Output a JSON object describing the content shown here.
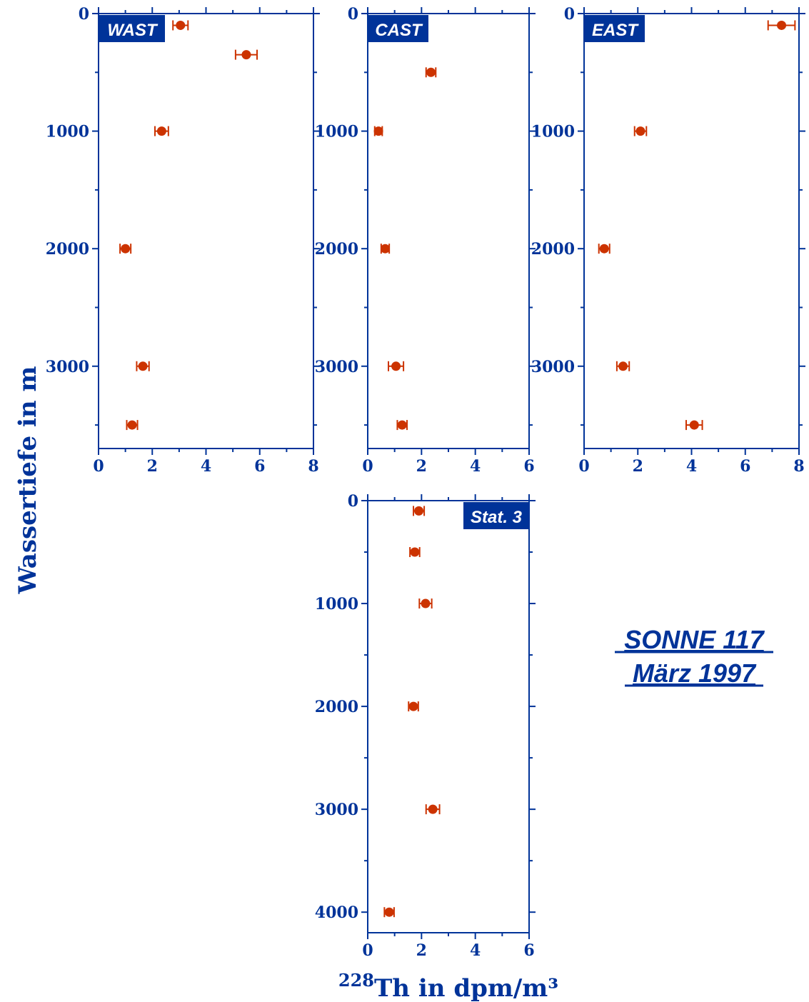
{
  "colors": {
    "axis": "#003399",
    "marker": "#cc3300",
    "tag_bg": "#003399",
    "tag_text": "#ffffff"
  },
  "annotation": {
    "line1": "SONNE 117",
    "line2": "März 1997"
  },
  "y_axis_title": "Wassertiefe in m",
  "x_axis_title": {
    "superscript": "228",
    "text": "Th in dpm/m³"
  },
  "chart_data": [
    {
      "type": "scatter",
      "title": "WAST",
      "xlim": [
        0,
        8
      ],
      "ylim": [
        3700,
        0
      ],
      "xticks": [
        0,
        2,
        4,
        6,
        8
      ],
      "yticks": [
        0,
        1000,
        2000,
        3000
      ],
      "points": [
        {
          "depth": 100,
          "value": 3.05,
          "err": 0.28
        },
        {
          "depth": 350,
          "value": 5.5,
          "err": 0.4
        },
        {
          "depth": 1000,
          "value": 2.35,
          "err": 0.25
        },
        {
          "depth": 2000,
          "value": 1.0,
          "err": 0.2
        },
        {
          "depth": 3000,
          "value": 1.65,
          "err": 0.23
        },
        {
          "depth": 3500,
          "value": 1.25,
          "err": 0.2
        }
      ]
    },
    {
      "type": "scatter",
      "title": "CAST",
      "xlim": [
        0,
        6
      ],
      "ylim": [
        3700,
        0
      ],
      "xticks": [
        0,
        2,
        4,
        6
      ],
      "yticks": [
        0,
        1000,
        2000,
        3000
      ],
      "points": [
        {
          "depth": 500,
          "value": 2.35,
          "err": 0.18
        },
        {
          "depth": 1000,
          "value": 0.4,
          "err": 0.14
        },
        {
          "depth": 2000,
          "value": 0.65,
          "err": 0.15
        },
        {
          "depth": 3000,
          "value": 1.05,
          "err": 0.28
        },
        {
          "depth": 3500,
          "value": 1.28,
          "err": 0.18
        }
      ]
    },
    {
      "type": "scatter",
      "title": "EAST",
      "xlim": [
        0,
        8
      ],
      "ylim": [
        3700,
        0
      ],
      "xticks": [
        0,
        2,
        4,
        6,
        8
      ],
      "yticks": [
        0,
        1000,
        2000,
        3000
      ],
      "points": [
        {
          "depth": 100,
          "value": 7.35,
          "err": 0.5
        },
        {
          "depth": 1000,
          "value": 2.1,
          "err": 0.22
        },
        {
          "depth": 2000,
          "value": 0.75,
          "err": 0.2
        },
        {
          "depth": 3000,
          "value": 1.45,
          "err": 0.23
        },
        {
          "depth": 3500,
          "value": 4.1,
          "err": 0.3
        }
      ]
    },
    {
      "type": "scatter",
      "title": "Stat. 3",
      "xlim": [
        0,
        6
      ],
      "ylim": [
        4200,
        0
      ],
      "xticks": [
        0,
        2,
        4,
        6
      ],
      "yticks": [
        0,
        1000,
        2000,
        3000,
        4000
      ],
      "points": [
        {
          "depth": 100,
          "value": 1.9,
          "err": 0.2
        },
        {
          "depth": 500,
          "value": 1.75,
          "err": 0.18
        },
        {
          "depth": 1000,
          "value": 2.15,
          "err": 0.23
        },
        {
          "depth": 2000,
          "value": 1.7,
          "err": 0.18
        },
        {
          "depth": 3000,
          "value": 2.42,
          "err": 0.25
        },
        {
          "depth": 4000,
          "value": 0.8,
          "err": 0.18
        }
      ]
    }
  ]
}
